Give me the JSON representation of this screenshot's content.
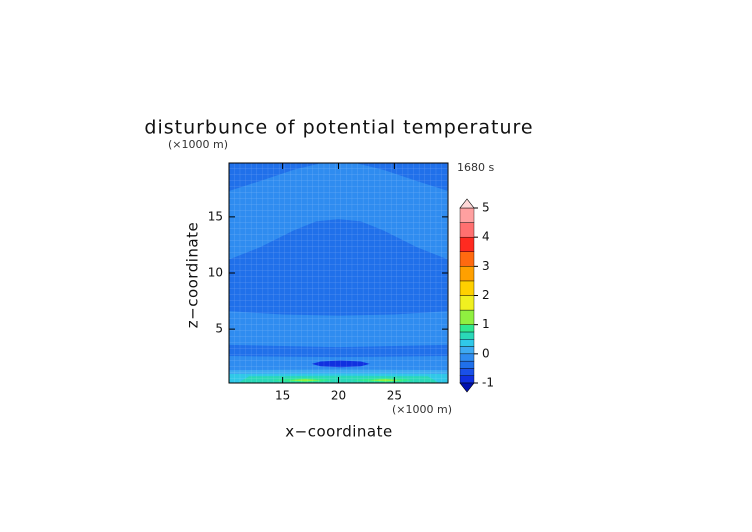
{
  "chart_data": {
    "type": "contour",
    "title": "disturbunce of potential temperature",
    "x_label": "x−coordinate",
    "y_label": "z−coordinate",
    "x_unit": "(×1000 m)",
    "y_unit": "(×1000 m)",
    "time_label": "1680 s",
    "xlim": [
      10.2,
      29.8
    ],
    "ylim": [
      0.2,
      19.8
    ],
    "xticks": [
      15,
      20,
      25
    ],
    "yticks": [
      5,
      10,
      15
    ],
    "grid": true,
    "colorbar": {
      "levels": [
        -1,
        -0.75,
        -0.5,
        -0.25,
        0,
        0.25,
        0.5,
        0.75,
        1,
        1.5,
        2,
        2.5,
        3,
        3.5,
        4,
        4.5,
        5
      ],
      "colors": [
        "#1030e0",
        "#1a50e8",
        "#2070ea",
        "#2f8cf0",
        "#3eaaf2",
        "#30c8e8",
        "#2ad8b8",
        "#30e890",
        "#90f040",
        "#f0f020",
        "#ffd000",
        "#ffa000",
        "#ff6a10",
        "#ff2a20",
        "#ff7070",
        "#ffa0a0"
      ],
      "under_color": "#0010b0",
      "over_color": "#ffd8d8",
      "ticks": [
        -1,
        0,
        1,
        2,
        3,
        4,
        5
      ]
    },
    "regions": [
      {
        "value": -0.4,
        "x": [
          10.2,
          29.8,
          29.8,
          10.2
        ],
        "y": [
          0.2,
          0.2,
          19.8,
          19.8
        ]
      },
      {
        "value": -0.1,
        "x": [
          10.2,
          13,
          16,
          18.5,
          21.5,
          24,
          27,
          29.8,
          29.8,
          27,
          24,
          22,
          20,
          18,
          16,
          13,
          10.2
        ],
        "y": [
          17.3,
          18.2,
          19.2,
          19.8,
          19.8,
          19.2,
          18.2,
          17.3,
          11.2,
          12.3,
          13.8,
          14.6,
          14.8,
          14.6,
          13.8,
          12.3,
          11.2
        ]
      },
      {
        "value": -0.1,
        "x": [
          10.2,
          15,
          20,
          25,
          29.8,
          29.8,
          25,
          20,
          15,
          10.2
        ],
        "y": [
          6.6,
          6.3,
          6.2,
          6.3,
          6.6,
          3.6,
          3.5,
          3.4,
          3.5,
          3.6
        ]
      },
      {
        "value": -0.1,
        "x": [
          10.2,
          20,
          29.8,
          29.8,
          20,
          10.2
        ],
        "y": [
          2.6,
          2.5,
          2.6,
          1.2,
          1.2,
          1.2
        ]
      },
      {
        "value": -0.9,
        "x": [
          17.6,
          18.4,
          20.2,
          22,
          22.8,
          22,
          20.2,
          18.4
        ],
        "y": [
          1.9,
          2.11,
          2.2,
          2.11,
          1.9,
          1.69,
          1.6,
          1.69
        ]
      },
      {
        "value": 0.1,
        "x": [
          10.2,
          29.8,
          29.8,
          20,
          10.2
        ],
        "y": [
          0.2,
          0.2,
          1.35,
          1.4,
          1.35
        ]
      },
      {
        "value": 0.3,
        "x": [
          10.2,
          29.8,
          29.8,
          20,
          10.2
        ],
        "y": [
          0.2,
          0.2,
          1.0,
          1.05,
          1.0
        ]
      },
      {
        "value": 0.6,
        "x": [
          11,
          29,
          28,
          20,
          12
        ],
        "y": [
          0.2,
          0.2,
          0.8,
          0.85,
          0.8
        ]
      },
      {
        "value": 0.9,
        "x": [
          14,
          15.5,
          17,
          18.5,
          19.5,
          18.5,
          17,
          15.5
        ],
        "y": [
          0.45,
          0.58,
          0.62,
          0.58,
          0.45,
          0.32,
          0.28,
          0.32
        ]
      },
      {
        "value": 0.9,
        "x": [
          21.2,
          22.7,
          24.2,
          25.7,
          26.7,
          25.7,
          24.2,
          22.7
        ],
        "y": [
          0.45,
          0.58,
          0.62,
          0.58,
          0.45,
          0.32,
          0.28,
          0.32
        ]
      },
      {
        "value": 1.2,
        "x": [
          15.5,
          17,
          18.5,
          17
        ],
        "y": [
          0.45,
          0.55,
          0.45,
          0.35
        ]
      },
      {
        "value": 1.2,
        "x": [
          22.7,
          24.2,
          25.7,
          24.2
        ],
        "y": [
          0.45,
          0.55,
          0.45,
          0.35
        ]
      }
    ]
  }
}
